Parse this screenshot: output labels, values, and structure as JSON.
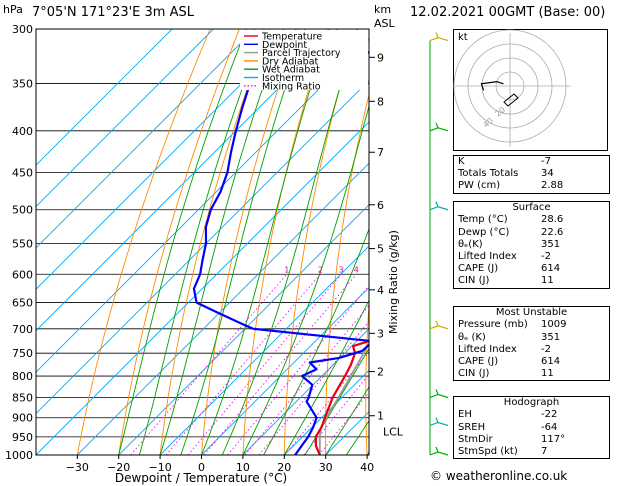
{
  "header": {
    "left_unit": "hPa",
    "location": "7°05'N  171°23'E  3m  ASL",
    "right_unit_top": "km",
    "right_unit_bottom": "ASL",
    "datetime": "12.02.2021  00GMT  (Base: 00)"
  },
  "chart_data": {
    "type": "line",
    "title": "7°05'N  171°23'E  3m  ASL",
    "xlabel": "Dewpoint / Temperature (°C)",
    "ylabel": "hPa",
    "right_axis_label": "Mixing Ratio (g/kg)",
    "x_ticks": [
      "−30",
      "−20",
      "−10",
      "0",
      "10",
      "20",
      "30",
      "40"
    ],
    "x_tick_values": [
      -30,
      -20,
      -10,
      0,
      10,
      20,
      30,
      40
    ],
    "xlim": [
      -35,
      40
    ],
    "pressure_ticks": [
      300,
      350,
      400,
      450,
      500,
      550,
      600,
      650,
      700,
      750,
      800,
      850,
      900,
      950,
      1000
    ],
    "ylim": [
      1000,
      300
    ],
    "y_scale": "log",
    "skew": "45°",
    "height_km_ticks": [
      {
        "label": "9",
        "p": 325
      },
      {
        "label": "8",
        "p": 368
      },
      {
        "label": "7",
        "p": 425
      },
      {
        "label": "6",
        "p": 493
      },
      {
        "label": "5",
        "p": 558
      },
      {
        "label": "4",
        "p": 627
      },
      {
        "label": "3",
        "p": 709
      },
      {
        "label": "2",
        "p": 790
      },
      {
        "label": "1",
        "p": 895
      }
    ],
    "lcl_label": "LCL",
    "lcl_pressure": 925,
    "mixing_ratio_labels": [
      "1",
      "2",
      "3",
      "4",
      "6",
      "8",
      "10",
      "15",
      "20",
      "25"
    ],
    "mixing_ratio_values": [
      1,
      2,
      3,
      4,
      6,
      8,
      10,
      15,
      20,
      25
    ],
    "legend": [
      {
        "name": "Temperature",
        "color": "#e8000b"
      },
      {
        "name": "Dewpoint",
        "color": "#0000ff"
      },
      {
        "name": "Parcel Trajectory",
        "color": "#999999"
      },
      {
        "name": "Dry Adiabat",
        "color": "#ff8c00"
      },
      {
        "name": "Wet Adiabat",
        "color": "#00a000"
      },
      {
        "name": "Isotherm",
        "color": "#00aaff"
      },
      {
        "name": "Mixing Ratio",
        "color": "#ff00ff",
        "dotted": true
      }
    ],
    "series": [
      {
        "name": "Temperature",
        "color": "#e8000b",
        "points": [
          [
            1000,
            28.6
          ],
          [
            975,
            25.5
          ],
          [
            950,
            23.2
          ],
          [
            925,
            22.3
          ],
          [
            900,
            20.8
          ],
          [
            850,
            17.8
          ],
          [
            800,
            15.6
          ],
          [
            775,
            14.3
          ],
          [
            750,
            12.5
          ],
          [
            735,
            10.3
          ],
          [
            720,
            14.2
          ],
          [
            700,
            13.1
          ],
          [
            675,
            11.2
          ],
          [
            650,
            9.5
          ],
          [
            625,
            7.2
          ],
          [
            600,
            5.0
          ],
          [
            575,
            3.1
          ],
          [
            550,
            1.0
          ],
          [
            525,
            -2.0
          ],
          [
            500,
            -4.6
          ],
          [
            475,
            -7.5
          ],
          [
            450,
            -10.2
          ],
          [
            425,
            -13.8
          ],
          [
            400,
            -16.8
          ],
          [
            375,
            -20.5
          ],
          [
            350,
            -24.6
          ],
          [
            340,
            -26.0
          ]
        ]
      },
      {
        "name": "Dewpoint",
        "color": "#0000ff",
        "points": [
          [
            1000,
            22.6
          ],
          [
            975,
            22.0
          ],
          [
            950,
            21.4
          ],
          [
            925,
            20.3
          ],
          [
            900,
            18.8
          ],
          [
            860,
            12.5
          ],
          [
            850,
            12.0
          ],
          [
            820,
            9.8
          ],
          [
            800,
            5.2
          ],
          [
            785,
            7.1
          ],
          [
            770,
            3.8
          ],
          [
            760,
            9.8
          ],
          [
            745,
            13.7
          ],
          [
            725,
            13.9
          ],
          [
            700,
            -18.0
          ],
          [
            690,
            -22.0
          ],
          [
            670,
            -30.0
          ],
          [
            650,
            -38.0
          ],
          [
            625,
            -42.0
          ],
          [
            600,
            -44.0
          ],
          [
            575,
            -47.0
          ],
          [
            550,
            -50.0
          ],
          [
            525,
            -54.0
          ],
          [
            500,
            -57.0
          ],
          [
            475,
            -59.0
          ],
          [
            450,
            -62.0
          ],
          [
            425,
            -66.0
          ],
          [
            400,
            -70.0
          ],
          [
            375,
            -74.0
          ],
          [
            350,
            -78.0
          ],
          [
            336,
            -81.0
          ],
          [
            320,
            -56.0
          ],
          [
            313,
            -48.0
          ],
          [
            306,
            -49.0
          ],
          [
            300,
            -51.0
          ]
        ]
      },
      {
        "name": "Parcel Trajectory",
        "color": "#999999",
        "points": [
          [
            1000,
            28.6
          ],
          [
            950,
            24.2
          ],
          [
            925,
            22.2
          ],
          [
            900,
            21.2
          ],
          [
            850,
            19.2
          ],
          [
            800,
            17.0
          ],
          [
            750,
            14.6
          ],
          [
            700,
            12.0
          ],
          [
            650,
            9.2
          ],
          [
            600,
            6.2
          ],
          [
            550,
            2.8
          ],
          [
            500,
            -1.2
          ],
          [
            450,
            -6.0
          ],
          [
            400,
            -12.0
          ],
          [
            350,
            -19.5
          ],
          [
            330,
            -23.5
          ]
        ]
      }
    ]
  },
  "hodograph": {
    "label": "kt",
    "ring_labels": [
      "20",
      "40"
    ],
    "u": [
      -3,
      -6,
      -13,
      -12
    ],
    "v": [
      1,
      2,
      1,
      -2
    ]
  },
  "indices": {
    "top": [
      {
        "label": "K",
        "value": "-7"
      },
      {
        "label": "Totals Totals",
        "value": "34"
      },
      {
        "label": "PW (cm)",
        "value": "2.88"
      }
    ],
    "surface": {
      "title": "Surface",
      "rows": [
        {
          "label": "Temp (°C)",
          "value": "28.6"
        },
        {
          "label": "Dewp (°C)",
          "value": "22.6"
        },
        {
          "label": "θₑ(K)",
          "value": "351"
        },
        {
          "label": "Lifted Index",
          "value": "-2"
        },
        {
          "label": "CAPE (J)",
          "value": "614"
        },
        {
          "label": "CIN (J)",
          "value": "11"
        }
      ]
    },
    "most_unstable": {
      "title": "Most Unstable",
      "rows": [
        {
          "label": "Pressure (mb)",
          "value": "1009"
        },
        {
          "label": "θₑ (K)",
          "value": "351"
        },
        {
          "label": "Lifted Index",
          "value": "-2"
        },
        {
          "label": "CAPE (J)",
          "value": "614"
        },
        {
          "label": "CIN (J)",
          "value": "11"
        }
      ]
    },
    "hodo": {
      "title": "Hodograph",
      "rows": [
        {
          "label": "EH",
          "value": "-22"
        },
        {
          "label": "SREH",
          "value": "-64"
        },
        {
          "label": "StmDir",
          "value": "117°"
        },
        {
          "label": "StmSpd (kt)",
          "value": "7"
        }
      ]
    }
  },
  "copyright": "© weatheronline.co.uk"
}
